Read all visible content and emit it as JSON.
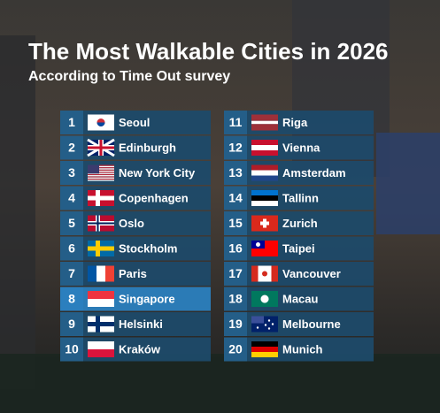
{
  "header": {
    "title": "The Most Walkable Cities in 2026",
    "subtitle": "According to Time Out survey"
  },
  "list": {
    "items": [
      {
        "rank": 1,
        "city": "Seoul"
      },
      {
        "rank": 2,
        "city": "Edinburgh"
      },
      {
        "rank": 3,
        "city": "New York City"
      },
      {
        "rank": 4,
        "city": "Copenhagen"
      },
      {
        "rank": 5,
        "city": "Oslo"
      },
      {
        "rank": 6,
        "city": "Stockholm"
      },
      {
        "rank": 7,
        "city": "Paris"
      },
      {
        "rank": 8,
        "city": "Singapore"
      },
      {
        "rank": 9,
        "city": "Helsinki"
      },
      {
        "rank": 10,
        "city": "Kraków"
      },
      {
        "rank": 11,
        "city": "Riga"
      },
      {
        "rank": 12,
        "city": "Vienna"
      },
      {
        "rank": 13,
        "city": "Amsterdam"
      },
      {
        "rank": 14,
        "city": "Tallinn"
      },
      {
        "rank": 15,
        "city": "Zurich"
      },
      {
        "rank": 16,
        "city": "Taipei"
      },
      {
        "rank": 17,
        "city": "Vancouver"
      },
      {
        "rank": 18,
        "city": "Macau"
      },
      {
        "rank": 19,
        "city": "Melbourne"
      },
      {
        "rank": 20,
        "city": "Munich"
      }
    ]
  }
}
